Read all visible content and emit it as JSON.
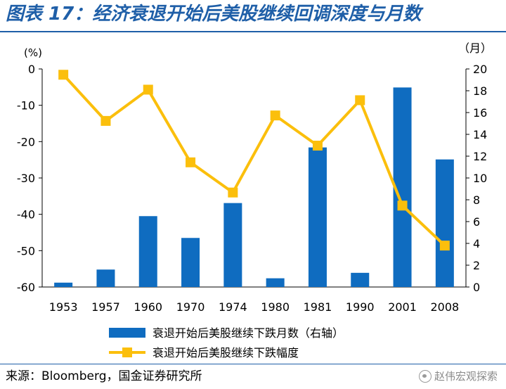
{
  "title": "图表 17：经济衰退开始后美股继续回调深度与月数",
  "source": "来源：Bloomberg，国金证券研究所",
  "watermark": "赵伟宏观探索",
  "colors": {
    "bar": "#0f6cc0",
    "line": "#fbbf0c",
    "title": "#1f5fa8"
  },
  "chart_data": {
    "type": "bar",
    "categories": [
      "1953",
      "1957",
      "1960",
      "1970",
      "1974",
      "1980",
      "1981",
      "1990",
      "2001",
      "2008"
    ],
    "left_axis": {
      "unit_label": "(%)",
      "min": -60,
      "max": 0,
      "ticks": [
        0,
        -10,
        -20,
        -30,
        -40,
        -50,
        -60
      ]
    },
    "right_axis": {
      "unit_label": "（月）",
      "min": 0,
      "max": 20,
      "ticks": [
        0,
        2,
        4,
        6,
        8,
        10,
        12,
        14,
        16,
        18,
        20
      ]
    },
    "series": [
      {
        "name": "衰退开始后美股继续下跌月数（右轴）",
        "type": "bar",
        "axis": "right",
        "values": [
          0.4,
          1.6,
          6.5,
          4.5,
          7.7,
          0.8,
          12.8,
          1.3,
          18.3,
          11.7
        ]
      },
      {
        "name": "衰退开始后美股继续下跌幅度",
        "type": "line",
        "axis": "left",
        "values": [
          -1.6,
          -14.3,
          -5.7,
          -25.7,
          -34.0,
          -12.8,
          -21.1,
          -8.6,
          -37.6,
          -48.6
        ]
      }
    ],
    "legend_position": "bottom-center",
    "grid": false
  }
}
